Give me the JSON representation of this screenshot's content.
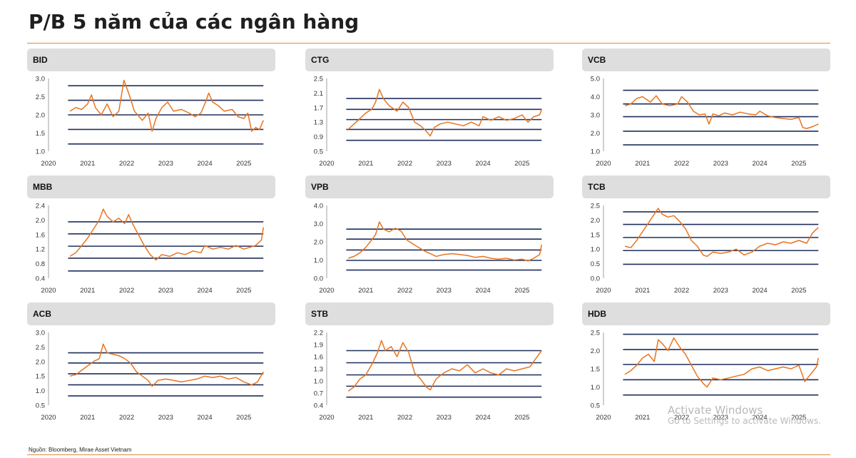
{
  "page": {
    "title": "P/B 5 năm của các ngân hàng",
    "source": "Nguồn: Bloomberg, Mirae Asset Vietnam"
  },
  "watermark": {
    "title": "Activate Windows",
    "subtitle": "Go to Settings to activate Windows."
  },
  "colors": {
    "line": "#e8741f",
    "band": "#1f2f5c",
    "header_bg": "#dedede",
    "rule": "#e08a3c"
  },
  "chart_data": [
    {
      "type": "line",
      "title": "BID",
      "xticks": [
        "2020",
        "2021",
        "2022",
        "2023",
        "2024",
        "2025"
      ],
      "xlim": [
        2020,
        2025.55
      ],
      "ylim": [
        1.0,
        3.0
      ],
      "yticks": [
        "3.0",
        "2.5",
        "2.0",
        "1.5",
        "1.0"
      ],
      "bands": [
        2.8,
        2.4,
        2.0,
        1.6,
        1.2
      ],
      "series": [
        {
          "x": [
            2020.55,
            2020.7,
            2020.85,
            2021.0,
            2021.1,
            2021.2,
            2021.35,
            2021.5,
            2021.65,
            2021.8,
            2021.93,
            2022.05,
            2022.2,
            2022.4,
            2022.55,
            2022.65,
            2022.75,
            2022.9,
            2023.05,
            2023.2,
            2023.4,
            2023.6,
            2023.75,
            2023.9,
            2024.0,
            2024.1,
            2024.2,
            2024.35,
            2024.5,
            2024.7,
            2024.85,
            2025.0,
            2025.1,
            2025.2,
            2025.3,
            2025.4,
            2025.5
          ],
          "y": [
            2.1,
            2.2,
            2.15,
            2.3,
            2.55,
            2.2,
            2.0,
            2.3,
            1.95,
            2.1,
            2.95,
            2.6,
            2.1,
            1.85,
            2.05,
            1.55,
            1.9,
            2.2,
            2.35,
            2.1,
            2.15,
            2.05,
            1.95,
            2.05,
            2.3,
            2.6,
            2.35,
            2.25,
            2.1,
            2.15,
            1.95,
            1.9,
            2.05,
            1.55,
            1.65,
            1.6,
            1.85
          ]
        }
      ]
    },
    {
      "type": "line",
      "title": "CTG",
      "xticks": [
        "2020",
        "2021",
        "2022",
        "2023",
        "2024",
        "2025"
      ],
      "xlim": [
        2020,
        2025.55
      ],
      "ylim": [
        0.5,
        2.5
      ],
      "yticks": [
        "2.5",
        "2.1",
        "1.7",
        "1.3",
        "0.9",
        "0.5"
      ],
      "bands": [
        1.95,
        1.65,
        1.37,
        1.1,
        0.8
      ],
      "series": [
        {
          "x": [
            2020.55,
            2020.7,
            2020.85,
            2021.0,
            2021.15,
            2021.25,
            2021.35,
            2021.45,
            2021.6,
            2021.8,
            2021.95,
            2022.1,
            2022.25,
            2022.4,
            2022.55,
            2022.65,
            2022.75,
            2022.9,
            2023.1,
            2023.3,
            2023.5,
            2023.7,
            2023.9,
            2024.0,
            2024.2,
            2024.4,
            2024.6,
            2024.8,
            2025.0,
            2025.15,
            2025.3,
            2025.45,
            2025.5
          ],
          "y": [
            1.1,
            1.25,
            1.4,
            1.55,
            1.65,
            1.85,
            2.2,
            1.95,
            1.75,
            1.6,
            1.85,
            1.7,
            1.3,
            1.2,
            1.05,
            0.92,
            1.15,
            1.25,
            1.3,
            1.25,
            1.2,
            1.3,
            1.2,
            1.45,
            1.35,
            1.45,
            1.35,
            1.4,
            1.5,
            1.3,
            1.45,
            1.5,
            1.65
          ]
        }
      ]
    },
    {
      "type": "line",
      "title": "VCB",
      "xticks": [
        "2020",
        "2021",
        "2022",
        "2023",
        "2024",
        "2025"
      ],
      "xlim": [
        2020,
        2025.55
      ],
      "ylim": [
        1.0,
        5.0
      ],
      "yticks": [
        "5.0",
        "4.0",
        "3.0",
        "2.0",
        "1.0"
      ],
      "bands": [
        4.35,
        3.6,
        2.9,
        2.1,
        1.35
      ],
      "series": [
        {
          "x": [
            2020.55,
            2020.7,
            2020.85,
            2021.0,
            2021.2,
            2021.35,
            2021.5,
            2021.7,
            2021.9,
            2022.0,
            2022.15,
            2022.3,
            2022.45,
            2022.6,
            2022.7,
            2022.8,
            2022.95,
            2023.1,
            2023.3,
            2023.5,
            2023.7,
            2023.9,
            2024.0,
            2024.2,
            2024.4,
            2024.6,
            2024.8,
            2025.0,
            2025.1,
            2025.2,
            2025.35,
            2025.5
          ],
          "y": [
            3.5,
            3.6,
            3.9,
            4.0,
            3.7,
            4.05,
            3.6,
            3.5,
            3.6,
            4.0,
            3.7,
            3.2,
            3.0,
            3.05,
            2.5,
            3.05,
            2.95,
            3.1,
            3.0,
            3.15,
            3.05,
            3.0,
            3.2,
            2.95,
            2.85,
            2.8,
            2.75,
            2.85,
            2.3,
            2.25,
            2.35,
            2.5
          ]
        }
      ]
    },
    {
      "type": "line",
      "title": "MBB",
      "xticks": [
        "2020",
        "2021",
        "2022",
        "2023",
        "2024",
        "2025"
      ],
      "xlim": [
        2020,
        2025.55
      ],
      "ylim": [
        0.4,
        2.4
      ],
      "yticks": [
        "2.4",
        "2.0",
        "1.6",
        "1.2",
        "0.8",
        "0.4"
      ],
      "bands": [
        1.95,
        1.62,
        1.28,
        0.95,
        0.6
      ],
      "series": [
        {
          "x": [
            2020.55,
            2020.7,
            2020.85,
            2021.0,
            2021.15,
            2021.3,
            2021.4,
            2021.5,
            2021.65,
            2021.8,
            2021.95,
            2022.05,
            2022.15,
            2022.3,
            2022.45,
            2022.6,
            2022.75,
            2022.9,
            2023.1,
            2023.3,
            2023.5,
            2023.7,
            2023.9,
            2024.0,
            2024.2,
            2024.4,
            2024.6,
            2024.8,
            2025.0,
            2025.15,
            2025.3,
            2025.45,
            2025.5
          ],
          "y": [
            1.0,
            1.1,
            1.3,
            1.5,
            1.75,
            2.0,
            2.3,
            2.1,
            1.95,
            2.05,
            1.9,
            2.15,
            1.9,
            1.6,
            1.3,
            1.05,
            0.9,
            1.05,
            1.0,
            1.1,
            1.05,
            1.15,
            1.1,
            1.3,
            1.2,
            1.25,
            1.2,
            1.3,
            1.2,
            1.25,
            1.3,
            1.45,
            1.8
          ]
        }
      ]
    },
    {
      "type": "line",
      "title": "VPB",
      "xticks": [
        "2020",
        "2021",
        "2022",
        "2023",
        "2024",
        "2025"
      ],
      "xlim": [
        2020,
        2025.55
      ],
      "ylim": [
        0.0,
        4.0
      ],
      "yticks": [
        "4.0",
        "3.0",
        "2.0",
        "1.0",
        "0.0"
      ],
      "bands": [
        2.7,
        2.15,
        1.55,
        0.98,
        0.45
      ],
      "series": [
        {
          "x": [
            2020.55,
            2020.7,
            2020.85,
            2021.0,
            2021.15,
            2021.25,
            2021.35,
            2021.45,
            2021.6,
            2021.75,
            2021.9,
            2022.05,
            2022.2,
            2022.35,
            2022.5,
            2022.65,
            2022.8,
            2023.0,
            2023.2,
            2023.4,
            2023.6,
            2023.8,
            2024.0,
            2024.2,
            2024.4,
            2024.6,
            2024.8,
            2025.0,
            2025.15,
            2025.3,
            2025.45,
            2025.5
          ],
          "y": [
            1.1,
            1.2,
            1.4,
            1.7,
            2.1,
            2.4,
            3.1,
            2.7,
            2.55,
            2.75,
            2.6,
            2.1,
            1.9,
            1.7,
            1.5,
            1.35,
            1.2,
            1.3,
            1.35,
            1.3,
            1.25,
            1.15,
            1.2,
            1.1,
            1.05,
            1.1,
            1.0,
            1.05,
            0.95,
            1.1,
            1.3,
            1.85
          ]
        }
      ]
    },
    {
      "type": "line",
      "title": "TCB",
      "xticks": [
        "2020",
        "2021",
        "2022",
        "2023",
        "2024",
        "2025"
      ],
      "xlim": [
        2020,
        2025.55
      ],
      "ylim": [
        0.0,
        2.5
      ],
      "yticks": [
        "2.5",
        "2.0",
        "1.5",
        "1.0",
        "0.5",
        "0.0"
      ],
      "bands": [
        2.28,
        1.85,
        1.4,
        0.95,
        0.48
      ],
      "series": [
        {
          "x": [
            2020.55,
            2020.7,
            2020.85,
            2021.0,
            2021.15,
            2021.3,
            2021.4,
            2021.5,
            2021.65,
            2021.8,
            2021.95,
            2022.1,
            2022.25,
            2022.4,
            2022.55,
            2022.65,
            2022.8,
            2023.0,
            2023.2,
            2023.4,
            2023.6,
            2023.8,
            2024.0,
            2024.2,
            2024.4,
            2024.6,
            2024.8,
            2025.0,
            2025.2,
            2025.35,
            2025.5
          ],
          "y": [
            1.1,
            1.05,
            1.3,
            1.6,
            1.9,
            2.2,
            2.4,
            2.2,
            2.1,
            2.15,
            1.95,
            1.7,
            1.3,
            1.1,
            0.8,
            0.75,
            0.9,
            0.85,
            0.9,
            1.0,
            0.8,
            0.9,
            1.1,
            1.2,
            1.15,
            1.25,
            1.2,
            1.3,
            1.2,
            1.55,
            1.75
          ]
        }
      ]
    },
    {
      "type": "line",
      "title": "ACB",
      "xticks": [
        "2020",
        "2021",
        "2022",
        "2023",
        "2024",
        "2025"
      ],
      "xlim": [
        2020,
        2025.55
      ],
      "ylim": [
        0.5,
        3.0
      ],
      "yticks": [
        "3.0",
        "2.5",
        "2.0",
        "1.5",
        "1.0",
        "0.5"
      ],
      "bands": [
        2.3,
        1.95,
        1.58,
        1.2,
        0.82
      ],
      "series": [
        {
          "x": [
            2020.55,
            2020.7,
            2020.85,
            2021.0,
            2021.15,
            2021.3,
            2021.4,
            2021.5,
            2021.65,
            2021.8,
            2021.95,
            2022.1,
            2022.25,
            2022.4,
            2022.55,
            2022.65,
            2022.8,
            2023.0,
            2023.2,
            2023.4,
            2023.6,
            2023.8,
            2024.0,
            2024.2,
            2024.4,
            2024.6,
            2024.8,
            2025.0,
            2025.2,
            2025.35,
            2025.5
          ],
          "y": [
            1.5,
            1.55,
            1.7,
            1.85,
            2.0,
            2.1,
            2.6,
            2.3,
            2.25,
            2.2,
            2.1,
            1.95,
            1.65,
            1.5,
            1.35,
            1.15,
            1.35,
            1.4,
            1.35,
            1.3,
            1.35,
            1.4,
            1.5,
            1.45,
            1.5,
            1.4,
            1.45,
            1.3,
            1.2,
            1.3,
            1.65
          ]
        }
      ]
    },
    {
      "type": "line",
      "title": "STB",
      "xticks": [
        "2020",
        "2021",
        "2022",
        "2023",
        "2024",
        "2025"
      ],
      "xlim": [
        2020,
        2025.55
      ],
      "ylim": [
        0.4,
        2.2
      ],
      "yticks": [
        "2.2",
        "1.9",
        "1.6",
        "1.3",
        "1.0",
        "0.7",
        "0.4"
      ],
      "bands": [
        1.75,
        1.45,
        1.15,
        0.87,
        0.6
      ],
      "series": [
        {
          "x": [
            2020.55,
            2020.7,
            2020.85,
            2021.0,
            2021.15,
            2021.3,
            2021.4,
            2021.5,
            2021.65,
            2021.8,
            2021.95,
            2022.1,
            2022.25,
            2022.4,
            2022.55,
            2022.65,
            2022.8,
            2023.0,
            2023.2,
            2023.4,
            2023.6,
            2023.8,
            2024.0,
            2024.2,
            2024.4,
            2024.6,
            2024.8,
            2025.0,
            2025.2,
            2025.35,
            2025.5
          ],
          "y": [
            0.75,
            0.85,
            1.05,
            1.15,
            1.4,
            1.7,
            2.0,
            1.75,
            1.85,
            1.6,
            1.95,
            1.7,
            1.2,
            1.05,
            0.85,
            0.78,
            1.05,
            1.2,
            1.3,
            1.25,
            1.4,
            1.2,
            1.3,
            1.2,
            1.15,
            1.3,
            1.25,
            1.3,
            1.35,
            1.55,
            1.75
          ]
        }
      ]
    },
    {
      "type": "line",
      "title": "HDB",
      "xticks": [
        "2020",
        "2021",
        "2022",
        "2023",
        "2024",
        "2025"
      ],
      "xlim": [
        2020,
        2025.55
      ],
      "ylim": [
        0.5,
        2.5
      ],
      "yticks": [
        "2.5",
        "2.0",
        "1.5",
        "1.0",
        "0.5"
      ],
      "bands": [
        2.45,
        2.03,
        1.62,
        1.2,
        0.78
      ],
      "series": [
        {
          "x": [
            2020.55,
            2020.7,
            2020.85,
            2021.0,
            2021.15,
            2021.3,
            2021.4,
            2021.5,
            2021.65,
            2021.8,
            2021.95,
            2022.1,
            2022.25,
            2022.4,
            2022.55,
            2022.65,
            2022.8,
            2023.0,
            2023.2,
            2023.4,
            2023.6,
            2023.8,
            2024.0,
            2024.2,
            2024.4,
            2024.6,
            2024.8,
            2025.0,
            2025.15,
            2025.3,
            2025.45,
            2025.5
          ],
          "y": [
            1.35,
            1.45,
            1.6,
            1.8,
            1.9,
            1.7,
            2.3,
            2.2,
            2.0,
            2.35,
            2.1,
            1.9,
            1.6,
            1.3,
            1.1,
            1.0,
            1.25,
            1.2,
            1.25,
            1.3,
            1.35,
            1.5,
            1.55,
            1.45,
            1.5,
            1.55,
            1.5,
            1.6,
            1.15,
            1.35,
            1.55,
            1.8
          ]
        }
      ]
    }
  ]
}
